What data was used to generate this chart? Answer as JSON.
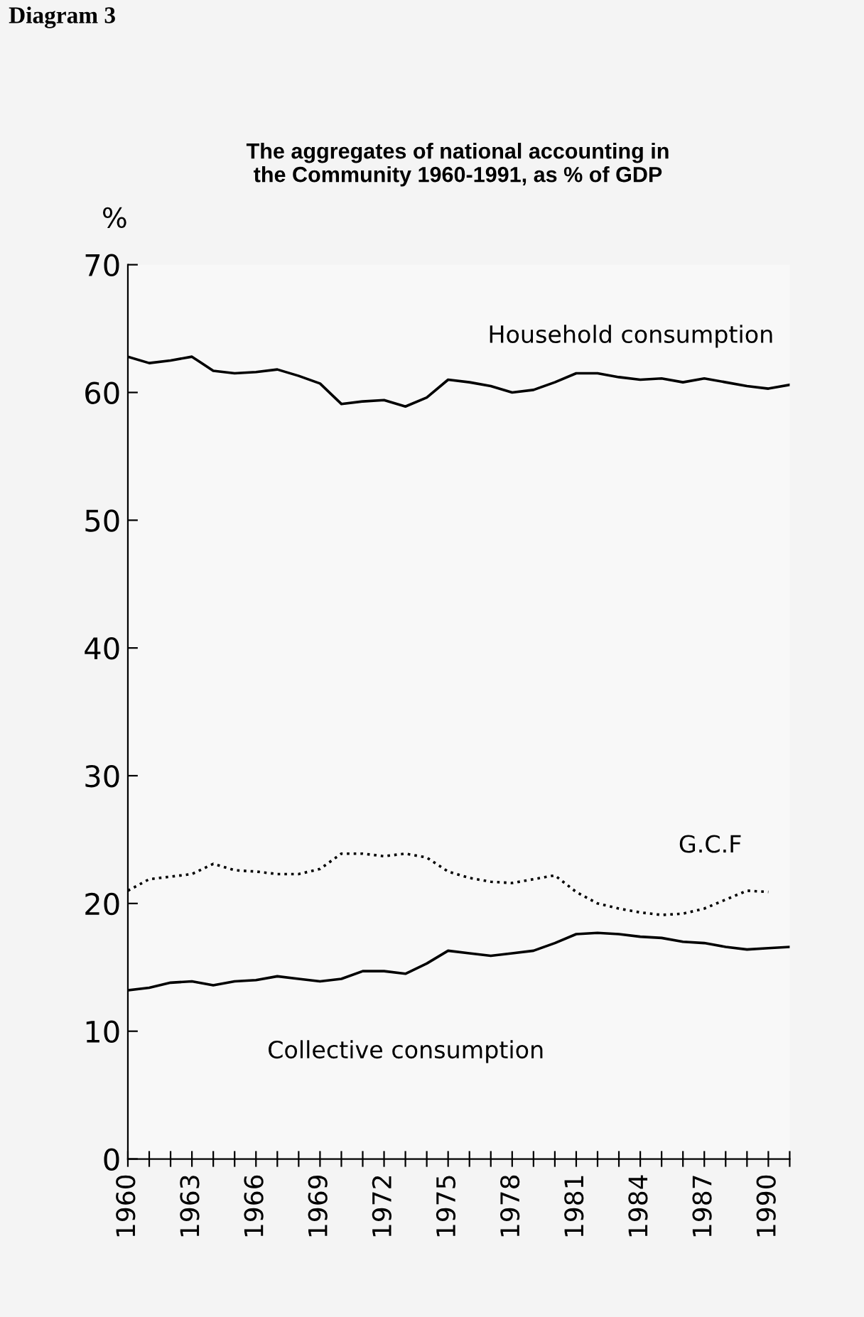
{
  "chart_data": {
    "type": "line",
    "title": "The aggregates of national accounting in\nthe Community 1960-1991, as % of GDP",
    "ylabel": "%",
    "annotations": [
      "Diagram 3"
    ],
    "x": [
      1960,
      1961,
      1962,
      1963,
      1964,
      1965,
      1966,
      1967,
      1968,
      1969,
      1970,
      1971,
      1972,
      1973,
      1974,
      1975,
      1976,
      1977,
      1978,
      1979,
      1980,
      1981,
      1982,
      1983,
      1984,
      1985,
      1986,
      1987,
      1988,
      1989,
      1990,
      1991
    ],
    "series": [
      {
        "name": "Household consumption",
        "color": "#000000",
        "line_style": "solid",
        "values": [
          62.8,
          62.3,
          62.5,
          62.8,
          61.7,
          61.5,
          61.6,
          61.8,
          61.3,
          60.7,
          59.1,
          59.3,
          59.4,
          58.9,
          59.6,
          61.0,
          60.8,
          60.5,
          60.0,
          60.2,
          60.8,
          61.5,
          61.5,
          61.2,
          61.0,
          61.1,
          60.8,
          61.1,
          60.8,
          60.5,
          60.3,
          60.6
        ]
      },
      {
        "name": "G.C.F",
        "color": "#000000",
        "line_style": "dotted",
        "values": [
          21.0,
          21.9,
          22.1,
          22.3,
          23.1,
          22.6,
          22.5,
          22.3,
          22.3,
          22.7,
          23.9,
          23.9,
          23.7,
          23.9,
          23.6,
          22.5,
          22.0,
          21.7,
          21.6,
          21.9,
          22.2,
          20.9,
          20.0,
          19.6,
          19.3,
          19.1,
          19.2,
          19.6,
          20.3,
          21.0,
          20.9,
          null
        ]
      },
      {
        "name": "Collective consumption",
        "color": "#000000",
        "line_style": "solid",
        "values": [
          13.2,
          13.4,
          13.8,
          13.9,
          13.6,
          13.9,
          14.0,
          14.3,
          14.1,
          13.9,
          14.1,
          14.7,
          14.7,
          14.5,
          15.3,
          16.3,
          16.1,
          15.9,
          16.1,
          16.3,
          16.9,
          17.6,
          17.7,
          17.6,
          17.4,
          17.3,
          17.0,
          16.9,
          16.6,
          16.4,
          16.5,
          16.6
        ]
      }
    ],
    "xlim": [
      1960,
      1991
    ],
    "ylim": [
      0,
      70
    ],
    "yticks": [
      0,
      10,
      20,
      30,
      40,
      50,
      60,
      70
    ],
    "xticks": [
      1960,
      {
        "value": 1961,
        "label": null
      },
      {
        "value": 1962,
        "label": null
      },
      1963,
      {
        "value": 1964,
        "label": null
      },
      {
        "value": 1965,
        "label": null
      },
      1966,
      {
        "value": 1967,
        "label": null
      },
      {
        "value": 1968,
        "label": null
      },
      1969,
      {
        "value": 1970,
        "label": null
      },
      {
        "value": 1971,
        "label": null
      },
      1972,
      {
        "value": 1973,
        "label": null
      },
      {
        "value": 1974,
        "label": null
      },
      1975,
      {
        "value": 1976,
        "label": null
      },
      {
        "value": 1977,
        "label": null
      },
      1978,
      {
        "value": 1979,
        "label": null
      },
      {
        "value": 1980,
        "label": null
      },
      1981,
      {
        "value": 1982,
        "label": null
      },
      {
        "value": 1983,
        "label": null
      },
      1984,
      {
        "value": 1985,
        "label": null
      },
      {
        "value": 1986,
        "label": null
      },
      1987,
      {
        "value": 1988,
        "label": null
      },
      {
        "value": 1989,
        "label": null
      },
      1990,
      {
        "value": 1991,
        "label": null
      }
    ],
    "grid": false,
    "legend": false,
    "marker": "none"
  }
}
